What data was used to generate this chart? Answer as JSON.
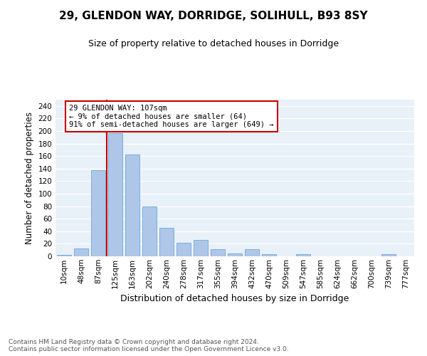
{
  "title1": "29, GLENDON WAY, DORRIDGE, SOLIHULL, B93 8SY",
  "title2": "Size of property relative to detached houses in Dorridge",
  "xlabel": "Distribution of detached houses by size in Dorridge",
  "ylabel": "Number of detached properties",
  "footer": "Contains HM Land Registry data © Crown copyright and database right 2024.\nContains public sector information licensed under the Open Government Licence v3.0.",
  "categories": [
    "10sqm",
    "48sqm",
    "87sqm",
    "125sqm",
    "163sqm",
    "202sqm",
    "240sqm",
    "278sqm",
    "317sqm",
    "355sqm",
    "394sqm",
    "432sqm",
    "470sqm",
    "509sqm",
    "547sqm",
    "585sqm",
    "624sqm",
    "662sqm",
    "700sqm",
    "739sqm",
    "777sqm"
  ],
  "values": [
    2,
    13,
    137,
    197,
    163,
    80,
    46,
    22,
    26,
    11,
    4,
    11,
    3,
    0,
    3,
    0,
    0,
    0,
    0,
    3,
    0
  ],
  "bar_color": "#aec6e8",
  "bar_edge_color": "#5a9fd4",
  "bg_color": "#e8f0f8",
  "grid_color": "#ffffff",
  "annotation_title": "29 GLENDON WAY: 107sqm",
  "annotation_line1": "← 9% of detached houses are smaller (64)",
  "annotation_line2": "91% of semi-detached houses are larger (649) →",
  "annotation_box_color": "#cc0000",
  "property_line_color": "#cc0000",
  "property_line_x": 2.5,
  "ylim": [
    0,
    250
  ],
  "yticks": [
    0,
    20,
    40,
    60,
    80,
    100,
    120,
    140,
    160,
    180,
    200,
    220,
    240
  ],
  "title1_fontsize": 11,
  "title2_fontsize": 9,
  "xlabel_fontsize": 9,
  "ylabel_fontsize": 8.5,
  "tick_fontsize": 7.5,
  "footer_fontsize": 6.5,
  "ann_fontsize": 7.5
}
